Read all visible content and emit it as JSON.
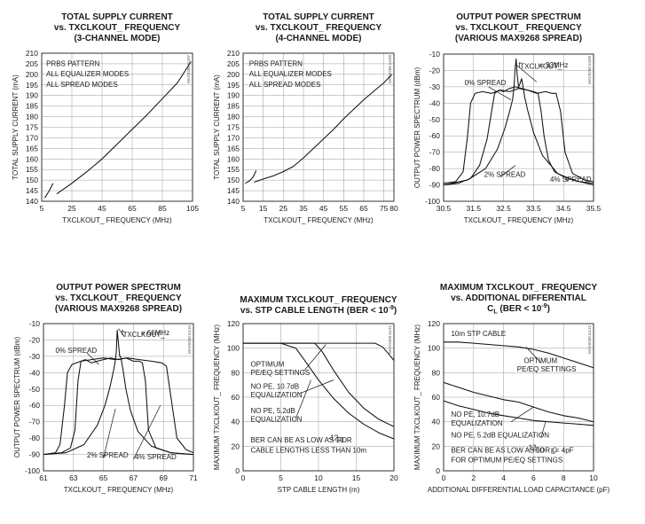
{
  "chart_data": [
    {
      "id": "c1",
      "type": "line",
      "title": [
        "TOTAL SUPPLY CURRENT",
        "vs. TXCLKOUT_ FREQUENCY",
        "(3-CHANNEL MODE)"
      ],
      "xlabel": "TXCLKOUT_ FREQUENCY (MHz)",
      "ylabel": "TOTAL SUPPLY CURRENT (mA)",
      "xlim": [
        5,
        105
      ],
      "ylim": [
        140,
        210
      ],
      "xticks": [
        "5",
        "25",
        "45",
        "65",
        "85",
        "105"
      ],
      "yticks": [
        "140",
        "145",
        "150",
        "155",
        "160",
        "165",
        "170",
        "175",
        "180",
        "185",
        "190",
        "195",
        "200",
        "205",
        "210"
      ],
      "code": "MAX9268 toc07",
      "annotations": [
        {
          "text": "PRBS PATTERN",
          "x": 8,
          "y": 204
        },
        {
          "text": "ALL EQUALIZER MODES",
          "x": 8,
          "y": 199
        },
        {
          "text": "ALL SPREAD MODES",
          "x": 8,
          "y": 194
        }
      ],
      "series": [
        {
          "x": [
            7,
            10,
            12.5
          ],
          "y": [
            141.5,
            145,
            148.5
          ]
        },
        {
          "x": [
            15,
            20,
            25,
            35,
            45,
            55,
            65,
            75,
            85,
            95,
            104
          ],
          "y": [
            143.5,
            146,
            148.5,
            154,
            160,
            167,
            174,
            181,
            188.5,
            196,
            206
          ]
        }
      ]
    },
    {
      "id": "c2",
      "type": "line",
      "title": [
        "TOTAL SUPPLY CURRENT",
        "vs. TXCLKOUT_ FREQUENCY",
        "(4-CHANNEL MODE)"
      ],
      "xlabel": "TXCLKOUT_ FREQUENCY (MHz)",
      "ylabel": "TOTAL SUPPLY CURRENT (mA)",
      "xlim": [
        5,
        80
      ],
      "ylim": [
        140,
        210
      ],
      "xticks": [
        "5",
        "15",
        "25",
        "35",
        "45",
        "55",
        "65",
        "75",
        "80"
      ],
      "yticks": [
        "140",
        "145",
        "150",
        "155",
        "160",
        "165",
        "170",
        "175",
        "180",
        "185",
        "190",
        "195",
        "200",
        "205",
        "210"
      ],
      "code": "MAX9268 toc08",
      "annotations": [
        {
          "text": "PRBS PATTERN",
          "x": 8,
          "y": 204
        },
        {
          "text": "ALL EQUALIZER MODES",
          "x": 8,
          "y": 199
        },
        {
          "text": "ALL SPREAD MODES",
          "x": 8,
          "y": 194
        }
      ],
      "series": [
        {
          "x": [
            6,
            8,
            10,
            11.5
          ],
          "y": [
            148.5,
            149.5,
            151.5,
            154.5
          ]
        },
        {
          "x": [
            10.5,
            15,
            20,
            25,
            30,
            35,
            40,
            45,
            50,
            55,
            60,
            65,
            70,
            75,
            79
          ],
          "y": [
            149,
            150.5,
            152,
            154,
            156.5,
            160.5,
            165,
            169.5,
            174,
            179,
            183.5,
            188,
            192,
            196,
            200
          ]
        }
      ]
    },
    {
      "id": "c3",
      "type": "line",
      "title": [
        "OUTPUT POWER SPECTRUM",
        "vs. TXCLKOUT_ FREQUENCY",
        "(VARIOUS MAX9268 SPREAD)"
      ],
      "xlabel": "TXCLKOUT_ FREQUENCY (MHz)",
      "ylabel": "OUTPUT POWER SPECTRUM (dBm)",
      "xlim": [
        30.5,
        35.5
      ],
      "ylim": [
        -100,
        -10
      ],
      "xticks": [
        "30.5",
        "31.5",
        "32.5",
        "33.5",
        "34.5",
        "35.5"
      ],
      "yticks": [
        "-10",
        "-20",
        "-30",
        "-40",
        "-50",
        "-60",
        "-70",
        "-80",
        "-90",
        "-100"
      ],
      "code": "MAX9268 toc09",
      "annotations": [
        {
          "text": "f",
          "x": 33.0,
          "y": -18
        },
        {
          "text": "TXCLKOUT_",
          "x": 33.05,
          "y": -19
        },
        {
          "text": "= 33MHz",
          "x": 33.7,
          "y": -18
        },
        {
          "text": "0% SPREAD",
          "x": 31.2,
          "y": -29
        },
        {
          "text": "2% SPREAD",
          "x": 31.85,
          "y": -85
        },
        {
          "text": "4% SPREAD",
          "x": 34.05,
          "y": -88
        }
      ],
      "series": [
        {
          "name": "0% SPREAD",
          "x": [
            30.5,
            31.3,
            31.9,
            32.3,
            32.55,
            32.7,
            32.8,
            32.85,
            32.88,
            32.92,
            32.95,
            33.0,
            33.05,
            33.1,
            33.15,
            33.2,
            33.3,
            33.5,
            33.8,
            34.3,
            34.8,
            35.5
          ],
          "y": [
            -90,
            -87,
            -80,
            -68,
            -55,
            -45,
            -38,
            -30,
            -20,
            -13,
            -22,
            -30,
            -28,
            -25,
            -30,
            -36,
            -44,
            -58,
            -72,
            -83,
            -87,
            -90
          ]
        },
        {
          "name": "2% SPREAD",
          "x": [
            30.5,
            31.0,
            31.4,
            31.7,
            31.95,
            32.1,
            32.2,
            32.35,
            32.5,
            32.7,
            32.9,
            33.1,
            33.3,
            33.5,
            33.65,
            33.75,
            33.85,
            34.0,
            34.2,
            34.5,
            35.0,
            35.5
          ],
          "y": [
            -90,
            -89,
            -86,
            -78,
            -62,
            -45,
            -34,
            -32,
            -33,
            -31,
            -30,
            -31,
            -32,
            -33,
            -34,
            -45,
            -60,
            -75,
            -82,
            -85,
            -88,
            -89
          ]
        },
        {
          "name": "4% SPREAD",
          "x": [
            30.5,
            30.9,
            31.15,
            31.3,
            31.4,
            31.55,
            31.8,
            32.1,
            32.4,
            32.7,
            33.0,
            33.3,
            33.6,
            33.9,
            34.1,
            34.25,
            34.4,
            34.55,
            34.8,
            35.2,
            35.5
          ],
          "y": [
            -89,
            -88,
            -82,
            -60,
            -40,
            -34,
            -33,
            -34,
            -32,
            -33,
            -31,
            -32,
            -34,
            -33,
            -34,
            -34,
            -45,
            -70,
            -83,
            -87,
            -88
          ]
        }
      ]
    },
    {
      "id": "c4",
      "type": "line",
      "title": [
        "OUTPUT POWER SPECTRUM",
        "vs. TXCLKOUT_ FREQUENCY",
        "(VARIOUS MAX9268 SPREAD)"
      ],
      "xlabel": "TXCLKOUT_ FREQUENCY (MHz)",
      "ylabel": "OUTPUT POWER SPECTRUM (dBm)",
      "xlim": [
        61,
        71
      ],
      "ylim": [
        -100,
        -10
      ],
      "xticks": [
        "61",
        "63",
        "65",
        "67",
        "69",
        "71"
      ],
      "yticks": [
        "-10",
        "-20",
        "-30",
        "-40",
        "-50",
        "-60",
        "-70",
        "-80",
        "-90",
        "-100"
      ],
      "code": "MAX9268 toc10",
      "annotations": [
        {
          "text": "f",
          "x": 66.2,
          "y": -17
        },
        {
          "text": "TXCLKOUT_",
          "x": 66.3,
          "y": -18
        },
        {
          "text": "= 66MHz",
          "x": 67.5,
          "y": -17
        },
        {
          "text": "0% SPREAD",
          "x": 61.8,
          "y": -28
        },
        {
          "text": "2% SPREAD",
          "x": 63.9,
          "y": -92
        },
        {
          "text": "4% SPREAD",
          "x": 67.1,
          "y": -93
        }
      ],
      "series": [
        {
          "name": "0% SPREAD",
          "x": [
            61,
            62.5,
            63.7,
            64.6,
            65.1,
            65.4,
            65.6,
            65.75,
            65.85,
            65.92,
            66.0,
            66.08,
            66.15,
            66.3,
            66.5,
            66.8,
            67.3,
            68.2,
            69.5,
            71
          ],
          "y": [
            -90,
            -89,
            -84,
            -72,
            -60,
            -50,
            -42,
            -35,
            -28,
            -14,
            -22,
            -30,
            -30,
            -38,
            -50,
            -63,
            -76,
            -85,
            -89,
            -90
          ]
        },
        {
          "name": "2% SPREAD",
          "x": [
            61,
            62.2,
            62.8,
            63.1,
            63.3,
            63.5,
            63.8,
            64.2,
            64.6,
            65.0,
            65.5,
            66.0,
            66.5,
            67.0,
            67.4,
            67.6,
            67.8,
            68.0,
            68.5,
            69.5,
            71
          ],
          "y": [
            -90,
            -89,
            -86,
            -75,
            -45,
            -33,
            -32,
            -34,
            -33,
            -32,
            -31,
            -32,
            -31,
            -33,
            -33,
            -34,
            -45,
            -75,
            -86,
            -89,
            -90
          ]
        },
        {
          "name": "4% SPREAD",
          "x": [
            61,
            61.8,
            62.1,
            62.4,
            62.6,
            62.9,
            63.5,
            64.2,
            65.0,
            65.8,
            66.6,
            67.4,
            68.2,
            68.9,
            69.2,
            69.5,
            69.9,
            70.5,
            71
          ],
          "y": [
            -90,
            -89,
            -84,
            -60,
            -40,
            -35,
            -33,
            -32,
            -31,
            -32,
            -31,
            -32,
            -33,
            -34,
            -36,
            -55,
            -80,
            -87,
            -89
          ]
        }
      ]
    },
    {
      "id": "c5",
      "type": "line",
      "title": [
        "MAXIMUM TXCLKOUT_ FREQUENCY",
        "vs. STP CABLE LENGTH (BER < 10"
      ],
      "title_sup": "-9",
      "title_end": ")",
      "xlabel": "STP CABLE LENGTH (m)",
      "ylabel": "MAXIMUM TXCLKOUT_ FREQUENCY (MHz)",
      "xlim": [
        0,
        20
      ],
      "ylim": [
        0,
        120
      ],
      "xticks": [
        "0",
        "5",
        "10",
        "15",
        "20"
      ],
      "yticks": [
        "0",
        "20",
        "40",
        "60",
        "80",
        "100",
        "120"
      ],
      "code": "MAX9268 toc11",
      "annotations": [
        {
          "text": "OPTIMUM",
          "x": 1.0,
          "y": 85
        },
        {
          "text": "PE/EQ SETTINGS",
          "x": 1.0,
          "y": 78
        },
        {
          "text": "NO PE, 10.7dB",
          "x": 1.0,
          "y": 67
        },
        {
          "text": "EQUALIZATION",
          "x": 1.0,
          "y": 60
        },
        {
          "text": "NO PE, 5.2dB",
          "x": 1.0,
          "y": 47
        },
        {
          "text": "EQUALIZATION",
          "x": 1.0,
          "y": 40
        },
        {
          "text": "BER CAN BE AS LOW AS 10",
          "x": 1.0,
          "y": 23
        },
        {
          "text": "-12",
          "x": 11.25,
          "y": 25
        },
        {
          "text": "FOR",
          "x": 12.45,
          "y": 23
        },
        {
          "text": "CABLE LENGTHS LESS THAN 10m",
          "x": 1.0,
          "y": 15
        }
      ],
      "series": [
        {
          "name": "OPTIMUM PE/EQ SETTINGS",
          "x": [
            0,
            5,
            10,
            15,
            17.5,
            18.5,
            19.2,
            20
          ],
          "y": [
            104,
            104,
            104,
            104,
            104,
            101,
            96,
            90
          ]
        },
        {
          "name": "NO PE, 10.7dB EQUALIZATION",
          "x": [
            0,
            5,
            9.5,
            10.5,
            12,
            14,
            16,
            18,
            20
          ],
          "y": [
            104,
            104,
            104,
            97,
            82,
            64,
            51,
            42,
            36
          ]
        },
        {
          "name": "NO PE, 5.2dB EQUALIZATION",
          "x": [
            0,
            5,
            7,
            8.5,
            10,
            12,
            14,
            16,
            18,
            20
          ],
          "y": [
            104,
            104,
            100,
            87,
            74,
            59,
            47,
            38,
            31,
            26
          ]
        }
      ]
    },
    {
      "id": "c6",
      "type": "line",
      "title": [
        "MAXIMUM TXCLKOUT_ FREQUENCY",
        "vs. ADDITIONAL DIFFERENTIAL",
        "C"
      ],
      "title_sub": "L",
      "title_end2": " (BER < 10",
      "title_sup": "-9",
      "title_end": ")",
      "xlabel": "ADDITIONAL DIFFERENTIAL LOAD CAPACITANCE (pF)",
      "ylabel": "MAXIMUM TXCLKOUT_ FREQUENCY (MHz)",
      "xlim": [
        0,
        10
      ],
      "ylim": [
        0,
        120
      ],
      "xticks": [
        "0",
        "2",
        "4",
        "6",
        "8",
        "10"
      ],
      "yticks": [
        "0",
        "20",
        "40",
        "60",
        "80",
        "100",
        "120"
      ],
      "code": "MAX9268 toc12",
      "annotations": [
        {
          "text": "10m STP CABLE",
          "x": 0.5,
          "y": 110
        },
        {
          "text": "OPTIMUM",
          "x": 5.35,
          "y": 88
        },
        {
          "text": "PE/EQ SETTINGS",
          "x": 4.9,
          "y": 81
        },
        {
          "text": "NO PE, 10.7dB",
          "x": 0.5,
          "y": 44
        },
        {
          "text": "EQUALIZATION",
          "x": 0.5,
          "y": 37
        },
        {
          "text": "NO PE, 5.2dB EQUALIZATION",
          "x": 0.5,
          "y": 27
        },
        {
          "text": "BER CAN BE AS LOW AS 10",
          "x": 0.5,
          "y": 15
        },
        {
          "text": "-12",
          "x": 5.5,
          "y": 17
        },
        {
          "text": "FOR C",
          "x": 6.1,
          "y": 15
        },
        {
          "text": "L",
          "x": 7.15,
          "y": 14
        },
        {
          "text": "< 4pF",
          "x": 7.45,
          "y": 15
        },
        {
          "text": "FOR OPTIMUM PE/EQ SETTINGS",
          "x": 0.5,
          "y": 7
        }
      ],
      "series": [
        {
          "name": "OPTIMUM PE/EQ SETTINGS",
          "x": [
            0,
            1,
            2,
            3,
            4,
            5,
            6,
            7,
            8,
            9,
            10
          ],
          "y": [
            105,
            105,
            104,
            103,
            102,
            101,
            99,
            96,
            92,
            88,
            84
          ]
        },
        {
          "name": "NO PE, 10.7dB EQUALIZATION",
          "x": [
            0,
            1,
            2,
            3,
            4,
            5,
            6,
            7,
            8,
            9,
            10
          ],
          "y": [
            72,
            68,
            64,
            61,
            58,
            56,
            52,
            48,
            45,
            43,
            40
          ]
        },
        {
          "name": "NO PE, 5.2dB EQUALIZATION",
          "x": [
            0,
            1,
            2,
            3,
            4,
            5,
            6,
            7,
            8,
            9,
            10
          ],
          "y": [
            57,
            53,
            50,
            47,
            45,
            43,
            41,
            40,
            39,
            38,
            37
          ]
        }
      ]
    }
  ]
}
